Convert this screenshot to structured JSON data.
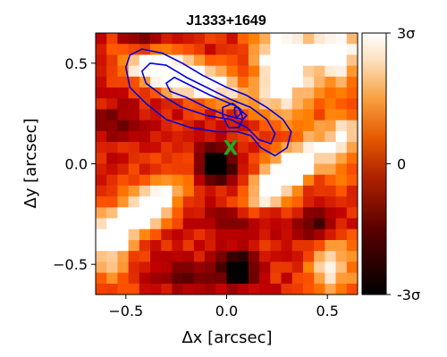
{
  "chart_data": {
    "type": "heatmap",
    "title": "J1333+1649",
    "xlabel": "Δx [arcsec]",
    "ylabel": "Δy [arcsec]",
    "xlim": [
      -0.65,
      0.65
    ],
    "ylim": [
      -0.65,
      0.65
    ],
    "x_ticks": [
      {
        "value": -0.5,
        "label": "−0.5"
      },
      {
        "value": 0.0,
        "label": "0.0"
      },
      {
        "value": 0.5,
        "label": "0.5"
      }
    ],
    "y_ticks": [
      {
        "value": 0.5,
        "label": "0.5"
      },
      {
        "value": 0.0,
        "label": "0.0"
      },
      {
        "value": -0.5,
        "label": "−0.5"
      }
    ],
    "grid": false,
    "colorbar": {
      "cmap": "gist_heat",
      "range": [
        -3,
        3
      ],
      "ticks": [
        {
          "value": 3,
          "label": "3σ"
        },
        {
          "value": 0,
          "label": "0"
        },
        {
          "value": -3,
          "label": "-3σ"
        }
      ]
    },
    "heatmap_grid": {
      "nx": 24,
      "ny": 24,
      "value_range": [
        -3,
        3
      ],
      "features": [
        {
          "kind": "peak",
          "x": -0.33,
          "y": 0.45,
          "sx": 0.14,
          "sy": 0.06,
          "rot": -20,
          "amp": 3.6
        },
        {
          "kind": "peak",
          "x": -0.1,
          "y": 0.42,
          "sx": 0.16,
          "sy": 0.06,
          "rot": -25,
          "amp": 2.6
        },
        {
          "kind": "peak",
          "x": 0.28,
          "y": 0.48,
          "sx": 0.1,
          "sy": 0.16,
          "rot": 0,
          "amp": 3.8
        },
        {
          "kind": "peak",
          "x": 0.55,
          "y": 0.55,
          "sx": 0.1,
          "sy": 0.1,
          "rot": 0,
          "amp": 3.2
        },
        {
          "kind": "peak",
          "x": 0.3,
          "y": -0.05,
          "sx": 0.2,
          "sy": 0.07,
          "rot": 40,
          "amp": 3.8
        },
        {
          "kind": "peak",
          "x": -0.4,
          "y": -0.22,
          "sx": 0.17,
          "sy": 0.07,
          "rot": 35,
          "amp": 3.5
        },
        {
          "kind": "peak",
          "x": 0.52,
          "y": -0.52,
          "sx": 0.08,
          "sy": 0.1,
          "rot": 0,
          "amp": 2.6
        },
        {
          "kind": "peak",
          "x": -0.58,
          "y": -0.42,
          "sx": 0.08,
          "sy": 0.12,
          "rot": 0,
          "amp": 2.2
        },
        {
          "kind": "peak",
          "x": 0.58,
          "y": 0.1,
          "sx": 0.06,
          "sy": 0.14,
          "rot": 0,
          "amp": 1.8
        },
        {
          "kind": "dip",
          "x": -0.05,
          "y": 0.0,
          "sx": 0.06,
          "sy": 0.06,
          "rot": 0,
          "amp": -5.0
        },
        {
          "kind": "dip",
          "x": 0.05,
          "y": -0.52,
          "sx": 0.06,
          "sy": 0.06,
          "rot": 0,
          "amp": -4.6
        },
        {
          "kind": "dip",
          "x": 0.05,
          "y": -0.28,
          "sx": 0.12,
          "sy": 0.05,
          "rot": 0,
          "amp": -2.2
        },
        {
          "kind": "dip",
          "x": 0.45,
          "y": -0.3,
          "sx": 0.06,
          "sy": 0.06,
          "rot": 0,
          "amp": -2.4
        },
        {
          "kind": "dip",
          "x": -0.2,
          "y": -0.55,
          "sx": 0.1,
          "sy": 0.05,
          "rot": 0,
          "amp": -1.8
        },
        {
          "kind": "dip",
          "x": -0.55,
          "y": 0.2,
          "sx": 0.08,
          "sy": 0.06,
          "rot": 0,
          "amp": -1.6
        },
        {
          "kind": "dip",
          "x": -0.42,
          "y": 0.62,
          "sx": 0.07,
          "sy": 0.04,
          "rot": 0,
          "amp": -1.6
        }
      ]
    },
    "contours": [
      {
        "color": "#0000dd",
        "points": [
          [
            -0.5,
            0.48
          ],
          [
            -0.48,
            0.54
          ],
          [
            -0.42,
            0.57
          ],
          [
            -0.32,
            0.55
          ],
          [
            -0.22,
            0.5
          ],
          [
            -0.12,
            0.44
          ],
          [
            0.0,
            0.38
          ],
          [
            0.1,
            0.34
          ],
          [
            0.2,
            0.28
          ],
          [
            0.28,
            0.22
          ],
          [
            0.32,
            0.16
          ],
          [
            0.3,
            0.08
          ],
          [
            0.24,
            0.04
          ],
          [
            0.17,
            0.08
          ],
          [
            0.12,
            0.14
          ],
          [
            0.05,
            0.16
          ],
          [
            -0.05,
            0.16
          ],
          [
            -0.18,
            0.18
          ],
          [
            -0.3,
            0.22
          ],
          [
            -0.4,
            0.3
          ],
          [
            -0.48,
            0.38
          ],
          [
            -0.5,
            0.48
          ]
        ]
      },
      {
        "color": "#0000dd",
        "points": [
          [
            -0.42,
            0.46
          ],
          [
            -0.38,
            0.5
          ],
          [
            -0.3,
            0.49
          ],
          [
            -0.2,
            0.43
          ],
          [
            -0.1,
            0.38
          ],
          [
            0.02,
            0.32
          ],
          [
            0.12,
            0.28
          ],
          [
            0.2,
            0.22
          ],
          [
            0.24,
            0.15
          ],
          [
            0.22,
            0.1
          ],
          [
            0.16,
            0.12
          ],
          [
            0.1,
            0.18
          ],
          [
            0.02,
            0.22
          ],
          [
            -0.1,
            0.24
          ],
          [
            -0.22,
            0.28
          ],
          [
            -0.32,
            0.34
          ],
          [
            -0.4,
            0.4
          ],
          [
            -0.42,
            0.46
          ]
        ]
      },
      {
        "color": "#0000dd",
        "points": [
          [
            -0.3,
            0.4
          ],
          [
            -0.26,
            0.43
          ],
          [
            -0.18,
            0.39
          ],
          [
            -0.08,
            0.34
          ],
          [
            0.04,
            0.29
          ],
          [
            0.1,
            0.24
          ],
          [
            0.08,
            0.22
          ],
          [
            0.0,
            0.24
          ],
          [
            -0.1,
            0.28
          ],
          [
            -0.2,
            0.33
          ],
          [
            -0.28,
            0.36
          ],
          [
            -0.3,
            0.4
          ]
        ]
      },
      {
        "color": "#0000dd",
        "points": [
          [
            -0.02,
            0.24
          ],
          [
            -0.02,
            0.28
          ],
          [
            0.03,
            0.3
          ],
          [
            0.07,
            0.27
          ],
          [
            0.08,
            0.22
          ],
          [
            0.06,
            0.18
          ],
          [
            0.01,
            0.18
          ],
          [
            -0.02,
            0.24
          ]
        ]
      },
      {
        "color": "#0000dd",
        "points": [
          [
            0.04,
            0.25
          ],
          [
            0.04,
            0.28
          ],
          [
            0.06,
            0.28
          ],
          [
            0.07,
            0.25
          ],
          [
            0.05,
            0.23
          ],
          [
            0.04,
            0.25
          ]
        ]
      }
    ],
    "marker": {
      "symbol": "X",
      "x": 0.02,
      "y": 0.08,
      "color": "#22aa22"
    }
  }
}
